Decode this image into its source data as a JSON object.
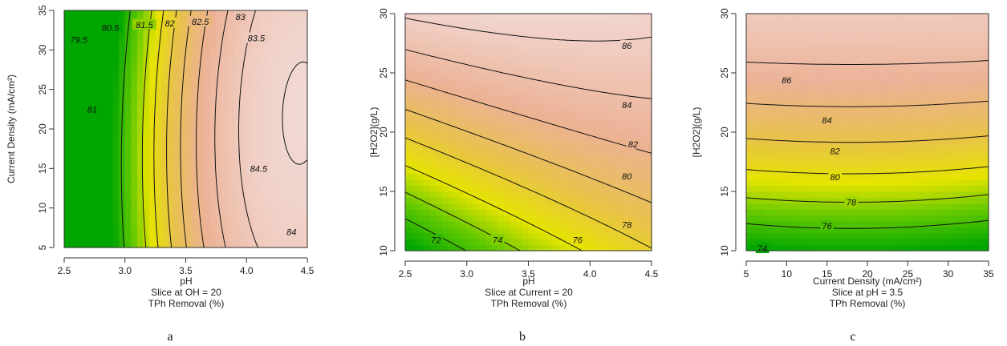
{
  "chart_data": [
    {
      "type": "heatmap",
      "panel_label": "a",
      "x_range": [
        2.5,
        4.5
      ],
      "y_range": [
        5,
        35
      ],
      "x_ticks": [
        "2.5",
        "3.0",
        "3.5",
        "4.0",
        "4.5"
      ],
      "y_ticks": [
        "5",
        "10",
        "15",
        "20",
        "25",
        "30",
        "35"
      ],
      "xlabel_lines": [
        "pH",
        "Slice at OH = 20",
        "TPh Removal (%)"
      ],
      "ylabel": "Current Density (mA/cm²)",
      "z_range": [
        79.0,
        84.9
      ],
      "contour_levels": [
        "79.5",
        "80.5",
        "81",
        "81.5",
        "82",
        "82.5",
        "83",
        "83.5",
        "84",
        "84.5"
      ]
    },
    {
      "type": "heatmap",
      "panel_label": "b",
      "x_range": [
        2.5,
        4.5
      ],
      "y_range": [
        10,
        30
      ],
      "x_ticks": [
        "2.5",
        "3.0",
        "3.5",
        "4.0",
        "4.5"
      ],
      "y_ticks": [
        "10",
        "15",
        "20",
        "25",
        "30"
      ],
      "xlabel_lines": [
        "pH",
        "Slice at Current = 20",
        "TPh Removal (%)"
      ],
      "ylabel": "[H2O2](g/L)",
      "z_range": [
        70,
        90
      ],
      "contour_levels": [
        "72",
        "74",
        "76",
        "78",
        "80",
        "82",
        "84",
        "86"
      ]
    },
    {
      "type": "heatmap",
      "panel_label": "c",
      "x_range": [
        5,
        35
      ],
      "y_range": [
        10,
        30
      ],
      "x_ticks": [
        "5",
        "10",
        "15",
        "20",
        "25",
        "30",
        "35"
      ],
      "y_ticks": [
        "10",
        "15",
        "20",
        "25",
        "30"
      ],
      "xlabel_lines": [
        "Current Density (mA/cm²)",
        "Slice at pH = 3.5",
        "TPh Removal (%)"
      ],
      "ylabel": "[H2O2](g/L)",
      "z_range": [
        72,
        90
      ],
      "contour_levels": [
        "74",
        "76",
        "78",
        "80",
        "82",
        "84",
        "86"
      ]
    }
  ]
}
